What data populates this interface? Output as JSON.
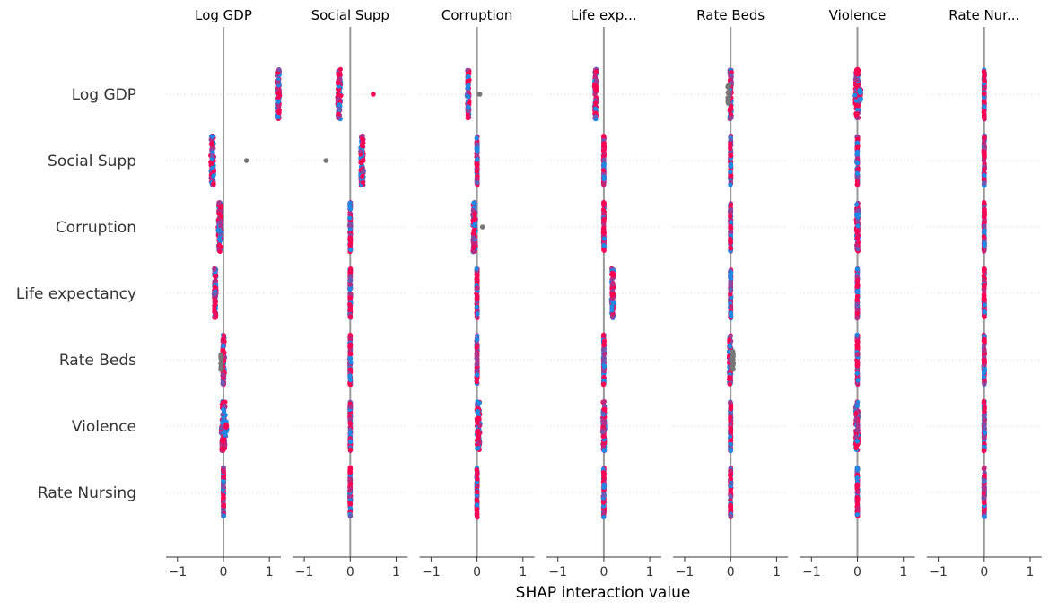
{
  "chart_data": {
    "type": "scatter",
    "subtype": "shap-interaction-summary-beeswarm",
    "xlabel": "SHAP interaction value",
    "xlim": [
      -1.25,
      1.25
    ],
    "xticks": [
      -1,
      0,
      1
    ],
    "xtick_labels": [
      "−1",
      "0",
      "1"
    ],
    "column_titles": [
      "Log GDP",
      "Social Supp",
      "Corruption",
      "Life exp...",
      "Rate Beds",
      "Violence",
      "Rate Nur..."
    ],
    "row_labels": [
      "Log GDP",
      "Social Supp",
      "Corruption",
      "Life expectancy",
      "Rate Beds",
      "Violence",
      "Rate Nursing"
    ],
    "colors": {
      "low": "#1e88e5",
      "high": "#ff0052",
      "mid": "#8a2be2",
      "missing": "#777777",
      "zero_line": "#999999",
      "grid_dots": "#cccccc",
      "axis": "#333333"
    },
    "cells": [
      [
        {
          "center": 1.2,
          "spread": 0.02,
          "height": 0.75
        },
        {
          "center": -0.24,
          "spread": 0.03,
          "height": 0.75,
          "outliers": [
            0.5
          ]
        },
        {
          "center": -0.19,
          "spread": 0.02,
          "height": 0.75,
          "outliers": [
            0.06
          ]
        },
        {
          "center": -0.18,
          "spread": 0.02,
          "height": 0.75
        },
        {
          "center": 0.0,
          "spread": 0.02,
          "height": 0.75,
          "missing_blob": -0.05
        },
        {
          "center": 0.0,
          "spread": 0.04,
          "height": 0.75,
          "blob": 0.06
        },
        {
          "center": 0.0,
          "spread": 0.01,
          "height": 0.75
        }
      ],
      [
        {
          "center": -0.24,
          "spread": 0.03,
          "height": 0.75,
          "outliers": [
            0.5
          ]
        },
        {
          "center": 0.26,
          "spread": 0.03,
          "height": 0.75,
          "outliers": [
            -0.53
          ]
        },
        {
          "center": 0.0,
          "spread": 0.01,
          "height": 0.75
        },
        {
          "center": 0.0,
          "spread": 0.01,
          "height": 0.75
        },
        {
          "center": 0.0,
          "spread": 0.01,
          "height": 0.75
        },
        {
          "center": 0.0,
          "spread": 0.01,
          "height": 0.75
        },
        {
          "center": 0.0,
          "spread": 0.01,
          "height": 0.75
        }
      ],
      [
        {
          "center": -0.08,
          "spread": 0.03,
          "height": 0.75
        },
        {
          "center": 0.0,
          "spread": 0.01,
          "height": 0.75
        },
        {
          "center": -0.06,
          "spread": 0.03,
          "height": 0.75,
          "outliers": [
            0.12
          ]
        },
        {
          "center": 0.0,
          "spread": 0.01,
          "height": 0.75
        },
        {
          "center": 0.0,
          "spread": 0.01,
          "height": 0.75
        },
        {
          "center": 0.0,
          "spread": 0.02,
          "height": 0.75
        },
        {
          "center": 0.0,
          "spread": 0.01,
          "height": 0.75
        }
      ],
      [
        {
          "center": -0.18,
          "spread": 0.02,
          "height": 0.75
        },
        {
          "center": 0.0,
          "spread": 0.01,
          "height": 0.75
        },
        {
          "center": 0.0,
          "spread": 0.01,
          "height": 0.75
        },
        {
          "center": 0.19,
          "spread": 0.02,
          "height": 0.75
        },
        {
          "center": 0.0,
          "spread": 0.01,
          "height": 0.75
        },
        {
          "center": 0.0,
          "spread": 0.01,
          "height": 0.75
        },
        {
          "center": 0.0,
          "spread": 0.01,
          "height": 0.75
        }
      ],
      [
        {
          "center": 0.0,
          "spread": 0.02,
          "height": 0.75,
          "missing_blob": -0.05
        },
        {
          "center": 0.0,
          "spread": 0.01,
          "height": 0.75
        },
        {
          "center": 0.0,
          "spread": 0.01,
          "height": 0.75
        },
        {
          "center": 0.0,
          "spread": 0.01,
          "height": 0.75
        },
        {
          "center": -0.01,
          "spread": 0.02,
          "height": 0.75,
          "missing_blob": 0.05
        },
        {
          "center": 0.0,
          "spread": 0.01,
          "height": 0.75
        },
        {
          "center": 0.0,
          "spread": 0.01,
          "height": 0.75
        }
      ],
      [
        {
          "center": 0.0,
          "spread": 0.04,
          "height": 0.75,
          "blob": 0.06
        },
        {
          "center": 0.0,
          "spread": 0.01,
          "height": 0.75
        },
        {
          "center": 0.03,
          "spread": 0.03,
          "height": 0.75
        },
        {
          "center": 0.0,
          "spread": 0.02,
          "height": 0.75
        },
        {
          "center": 0.0,
          "spread": 0.01,
          "height": 0.75
        },
        {
          "center": -0.01,
          "spread": 0.03,
          "height": 0.75
        },
        {
          "center": 0.0,
          "spread": 0.01,
          "height": 0.75
        }
      ],
      [
        {
          "center": 0.0,
          "spread": 0.01,
          "height": 0.75
        },
        {
          "center": 0.0,
          "spread": 0.01,
          "height": 0.75
        },
        {
          "center": 0.0,
          "spread": 0.01,
          "height": 0.75
        },
        {
          "center": 0.0,
          "spread": 0.01,
          "height": 0.75
        },
        {
          "center": 0.0,
          "spread": 0.01,
          "height": 0.75
        },
        {
          "center": 0.0,
          "spread": 0.01,
          "height": 0.75
        },
        {
          "center": 0.0,
          "spread": 0.01,
          "height": 0.75
        }
      ]
    ]
  }
}
